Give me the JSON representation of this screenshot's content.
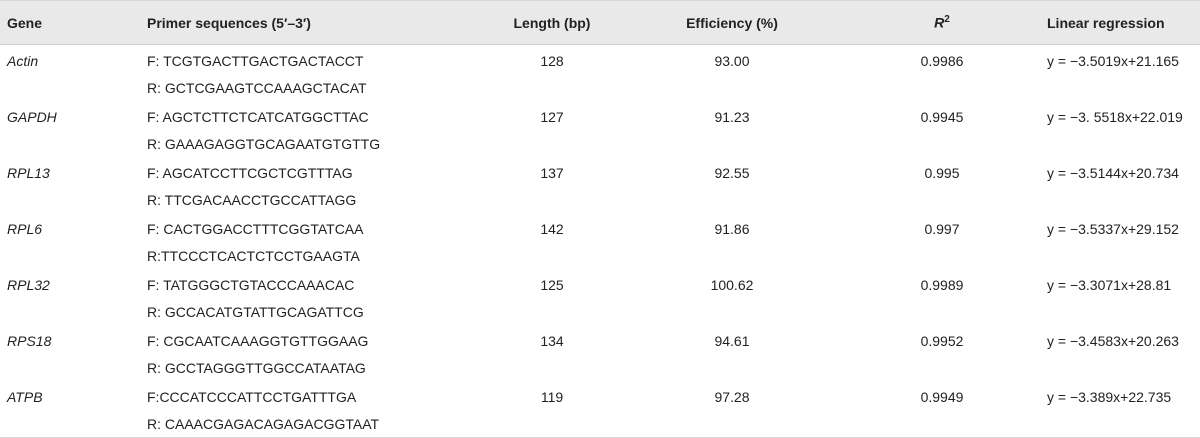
{
  "headers": {
    "gene": "Gene",
    "primer": "Primer sequences (5′–3′)",
    "length": "Length (bp)",
    "efficiency": "Efficiency (%)",
    "r2_base": "R",
    "r2_sup": "2",
    "regression": "Linear regression"
  },
  "rows": [
    {
      "gene": "Actin",
      "f": "F: TCGTGACTTGACTGACTACCT",
      "r": "R: GCTCGAAGTCCAAAGCTACAT",
      "length": "128",
      "efficiency": "93.00",
      "r2": "0.9986",
      "regression": "y = −3.5019x+21.165"
    },
    {
      "gene": "GAPDH",
      "f": "F: AGCTCTTCTCATCATGGCTTAC",
      "r": "R: GAAAGAGGTGCAGAATGTGTTG",
      "length": "127",
      "efficiency": "91.23",
      "r2": "0.9945",
      "regression": "y = −3. 5518x+22.019"
    },
    {
      "gene": "RPL13",
      "f": "F: AGCATCCTTCGCTCGTTTAG",
      "r": "R: TTCGACAACCTGCCATTAGG",
      "length": "137",
      "efficiency": "92.55",
      "r2": "0.995",
      "regression": "y = −3.5144x+20.734"
    },
    {
      "gene": "RPL6",
      "f": "F: CACTGGACCTTTCGGTATCAA",
      "r": "R:TTCCCTCACTCTCCTGAAGTA",
      "length": "142",
      "efficiency": "91.86",
      "r2": "0.997",
      "regression": "y = −3.5337x+29.152"
    },
    {
      "gene": "RPL32",
      "f": "F: TATGGGCTGTACCCAAACAC",
      "r": "R: GCCACATGTATTGCAGATTCG",
      "length": "125",
      "efficiency": "100.62",
      "r2": "0.9989",
      "regression": "y = −3.3071x+28.81"
    },
    {
      "gene": "RPS18",
      "f": "F: CGCAATCAAAGGTGTTGGAAG",
      "r": "R: GCCTAGGGTTGGCCATAATAG",
      "length": "134",
      "efficiency": "94.61",
      "r2": "0.9952",
      "regression": "y = −3.4583x+20.263"
    },
    {
      "gene": "ATPB",
      "f": "F:CCCATCCCATTCCTGATTTGA",
      "r": "R: CAAACGAGACAGAGACGGTAAT",
      "length": "119",
      "efficiency": "97.28",
      "r2": "0.9949",
      "regression": "y = −3.389x+22.735"
    }
  ]
}
